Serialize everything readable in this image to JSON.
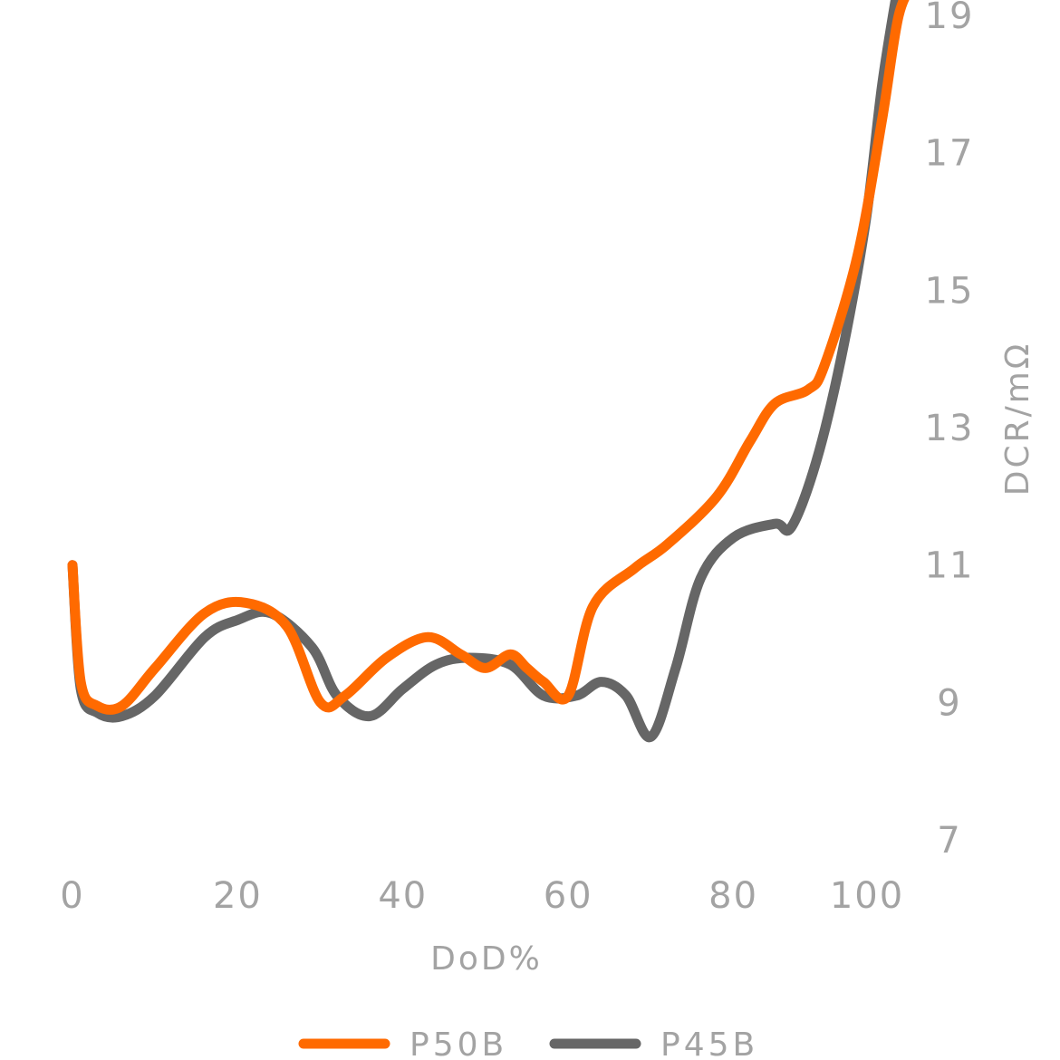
{
  "chart_data": {
    "type": "line",
    "title": "",
    "xlabel": "DoD%",
    "ylabel": "DCR/mΩ",
    "xlim": [
      0,
      100
    ],
    "ylim": [
      7,
      19
    ],
    "x_ticks": [
      "0",
      "20",
      "40",
      "60",
      "80",
      "100"
    ],
    "y_ticks": [
      "7",
      "9",
      "11",
      "13",
      "15",
      "17",
      "19"
    ],
    "y_axis_position": "right",
    "grid": false,
    "legend_position": "bottom",
    "smooth": true,
    "series": [
      {
        "name": "P50B",
        "color": "#ff6a00",
        "x": [
          0,
          1,
          3,
          6,
          10,
          16,
          21,
          26,
          30,
          33,
          38,
          43,
          47,
          50,
          53,
          55,
          57,
          60,
          63,
          68,
          72,
          78,
          82,
          85,
          89,
          91,
          95,
          98,
          100,
          102
        ],
        "y": [
          11.0,
          9.3,
          8.95,
          8.95,
          9.5,
          10.3,
          10.45,
          10.1,
          9.0,
          9.1,
          9.65,
          9.95,
          9.7,
          9.5,
          9.7,
          9.5,
          9.3,
          9.1,
          10.4,
          10.95,
          11.3,
          12.0,
          12.8,
          13.35,
          13.55,
          13.9,
          15.5,
          17.5,
          19.0,
          19.5
        ]
      },
      {
        "name": "P45B",
        "color": "#666666",
        "x": [
          0,
          1,
          3,
          6,
          10,
          16,
          20,
          24,
          29,
          32,
          36,
          40,
          44,
          48,
          53,
          57,
          61,
          64,
          67,
          70,
          73,
          76,
          80,
          85,
          87,
          90,
          93,
          96,
          98,
          100
        ],
        "y": [
          11.0,
          9.2,
          8.85,
          8.8,
          9.1,
          9.95,
          10.2,
          10.3,
          9.8,
          9.1,
          8.8,
          9.2,
          9.55,
          9.65,
          9.55,
          9.1,
          9.1,
          9.3,
          9.1,
          8.5,
          9.5,
          10.8,
          11.4,
          11.6,
          11.55,
          12.5,
          14.0,
          16.0,
          18.0,
          19.5
        ]
      }
    ]
  }
}
